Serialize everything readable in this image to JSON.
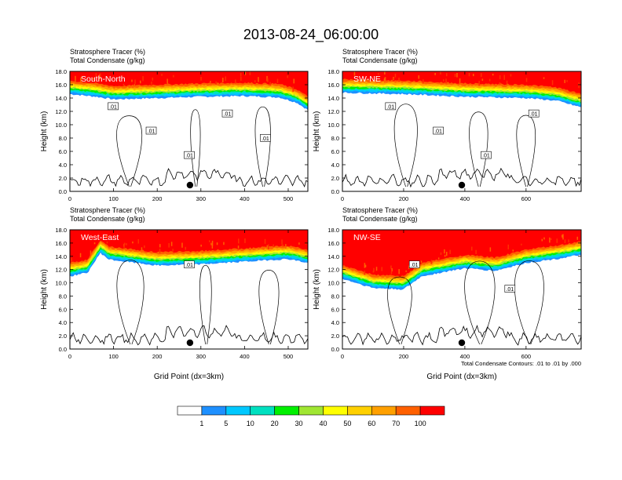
{
  "figure": {
    "title": "2013-08-24_06:00:00",
    "footnote": "Total Condensate Contours: .01 to .01 by .000"
  },
  "colorbar": {
    "colors": [
      "#ffffff",
      "#1e90ff",
      "#00c8ff",
      "#00e0c0",
      "#00f000",
      "#a0e632",
      "#ffff00",
      "#ffd000",
      "#ffa000",
      "#ff6000",
      "#ff0000"
    ],
    "labels": [
      "1",
      "5",
      "10",
      "20",
      "30",
      "40",
      "50",
      "60",
      "70",
      "100"
    ]
  },
  "chart_data": [
    {
      "type": "heatmap",
      "panel_label": "South-North",
      "title_lines": [
        "Stratosphere Tracer   (%)",
        "Total Condensate   (g/kg)"
      ],
      "ylabel": "Height (km)",
      "xlabel": "",
      "xlim": [
        0,
        545
      ],
      "ylim": [
        0,
        18
      ],
      "xticks": [
        "0",
        "100",
        "200",
        "300",
        "400",
        "500"
      ],
      "yticks": [
        "0.0",
        "2.0",
        "4.0",
        "6.0",
        "8.0",
        "10.0",
        "12.0",
        "14.0",
        "16.0",
        "18.0"
      ],
      "tropopause_km": [
        [
          0,
          14.6
        ],
        [
          60,
          14.2
        ],
        [
          100,
          13.8
        ],
        [
          200,
          14.0
        ],
        [
          300,
          14.2
        ],
        [
          400,
          14.3
        ],
        [
          480,
          14.1
        ],
        [
          520,
          13.3
        ],
        [
          545,
          12.2
        ]
      ],
      "contour_labels": [
        ".01",
        ".01",
        ".01",
        ".01",
        ".01"
      ],
      "marker_x": 275
    },
    {
      "type": "heatmap",
      "panel_label": "SW-NE",
      "title_lines": [
        "Stratosphere Tracer   (%)",
        "Total Condensate   (g/kg)"
      ],
      "ylabel": "Height (km)",
      "xlabel": "",
      "xlim": [
        0,
        780
      ],
      "ylim": [
        0,
        18
      ],
      "xticks": [
        "0",
        "200",
        "400",
        "600"
      ],
      "yticks": [
        "0.0",
        "2.0",
        "4.0",
        "6.0",
        "8.0",
        "10.0",
        "12.0",
        "14.0",
        "16.0",
        "18.0"
      ],
      "tropopause_km": [
        [
          0,
          14.8
        ],
        [
          200,
          14.6
        ],
        [
          400,
          14.2
        ],
        [
          600,
          14.0
        ],
        [
          700,
          13.6
        ],
        [
          780,
          12.6
        ]
      ],
      "contour_labels": [
        ".01",
        ".01",
        ".01",
        ".01"
      ],
      "marker_x": 390
    },
    {
      "type": "heatmap",
      "panel_label": "West-East",
      "title_lines": [
        "Stratosphere Tracer   (%)",
        "Total Condensate   (g/kg)"
      ],
      "ylabel": "Height (km)",
      "xlabel": "Grid Point (dx=3km)",
      "xlim": [
        0,
        545
      ],
      "ylim": [
        0,
        18
      ],
      "xticks": [
        "0",
        "100",
        "200",
        "300",
        "400",
        "500"
      ],
      "yticks": [
        "0.0",
        "2.0",
        "4.0",
        "6.0",
        "8.0",
        "10.0",
        "12.0",
        "14.0",
        "16.0",
        "18.0"
      ],
      "tropopause_km": [
        [
          0,
          11.0
        ],
        [
          40,
          11.5
        ],
        [
          70,
          14.5
        ],
        [
          90,
          13.5
        ],
        [
          200,
          12.6
        ],
        [
          300,
          12.8
        ],
        [
          400,
          13.2
        ],
        [
          500,
          13.6
        ],
        [
          545,
          13.0
        ]
      ],
      "contour_labels": [
        ".01"
      ],
      "marker_x": 275
    },
    {
      "type": "heatmap",
      "panel_label": "NW-SE",
      "title_lines": [
        "Stratosphere Tracer   (%)",
        "Total Condensate   (g/kg)"
      ],
      "ylabel": "Height (km)",
      "xlabel": "Grid Point (dx=3km)",
      "xlim": [
        0,
        780
      ],
      "ylim": [
        0,
        18
      ],
      "xticks": [
        "0",
        "200",
        "400",
        "600"
      ],
      "yticks": [
        "0.0",
        "2.0",
        "4.0",
        "6.0",
        "8.0",
        "10.0",
        "12.0",
        "14.0",
        "16.0",
        "18.0"
      ],
      "tropopause_km": [
        [
          0,
          10.6
        ],
        [
          100,
          9.2
        ],
        [
          200,
          9.0
        ],
        [
          260,
          11.0
        ],
        [
          400,
          12.2
        ],
        [
          500,
          11.8
        ],
        [
          600,
          13.0
        ],
        [
          700,
          13.6
        ],
        [
          780,
          14.2
        ]
      ],
      "contour_labels": [
        ".01",
        ".01"
      ],
      "marker_x": 390
    }
  ]
}
